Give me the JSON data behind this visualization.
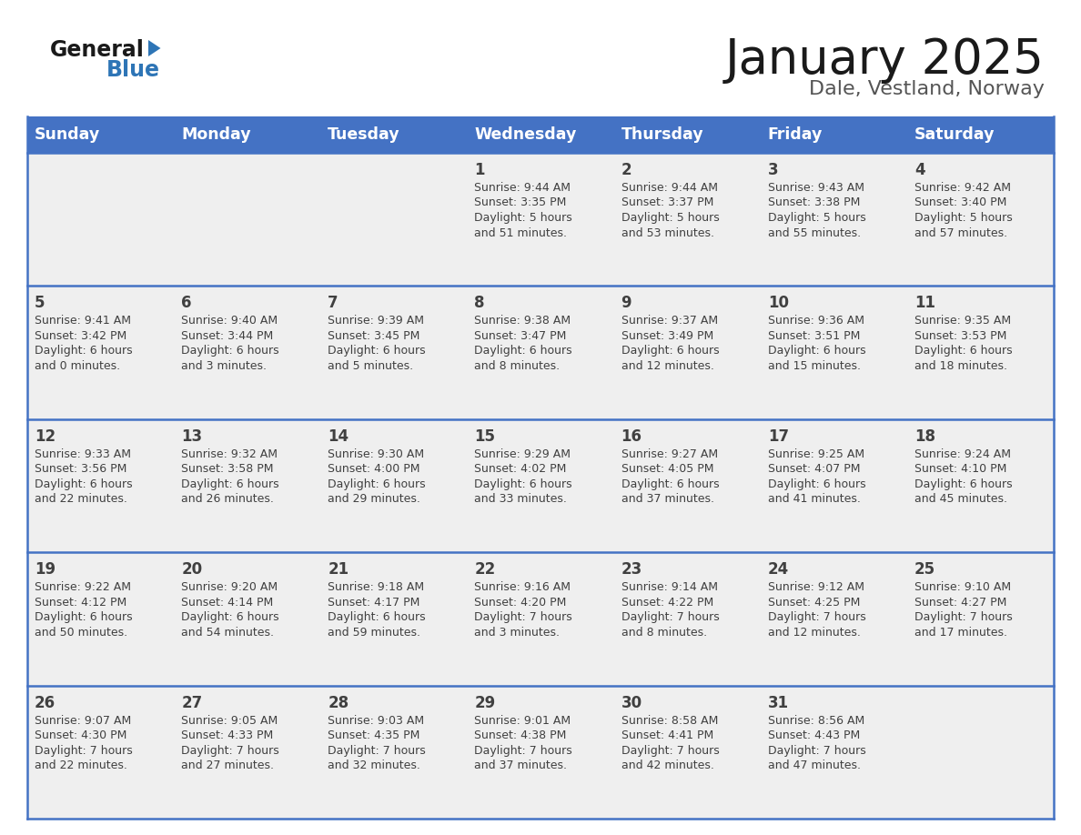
{
  "title": "January 2025",
  "subtitle": "Dale, Vestland, Norway",
  "days_of_week": [
    "Sunday",
    "Monday",
    "Tuesday",
    "Wednesday",
    "Thursday",
    "Friday",
    "Saturday"
  ],
  "header_bg": "#4472C4",
  "header_text_color": "#FFFFFF",
  "cell_bg_light": "#EFEFEF",
  "divider_color": "#4472C4",
  "text_color": "#404040",
  "title_color": "#1a1a1a",
  "subtitle_color": "#555555",
  "logo_general_color": "#1a1a1a",
  "logo_blue_color": "#2E75B6",
  "weeks": [
    {
      "days": [
        {
          "date": "",
          "sunrise": "",
          "sunset": "",
          "daylight": ""
        },
        {
          "date": "",
          "sunrise": "",
          "sunset": "",
          "daylight": ""
        },
        {
          "date": "",
          "sunrise": "",
          "sunset": "",
          "daylight": ""
        },
        {
          "date": "1",
          "sunrise": "9:44 AM",
          "sunset": "3:35 PM",
          "daylight": "5 hours\nand 51 minutes."
        },
        {
          "date": "2",
          "sunrise": "9:44 AM",
          "sunset": "3:37 PM",
          "daylight": "5 hours\nand 53 minutes."
        },
        {
          "date": "3",
          "sunrise": "9:43 AM",
          "sunset": "3:38 PM",
          "daylight": "5 hours\nand 55 minutes."
        },
        {
          "date": "4",
          "sunrise": "9:42 AM",
          "sunset": "3:40 PM",
          "daylight": "5 hours\nand 57 minutes."
        }
      ]
    },
    {
      "days": [
        {
          "date": "5",
          "sunrise": "9:41 AM",
          "sunset": "3:42 PM",
          "daylight": "6 hours\nand 0 minutes."
        },
        {
          "date": "6",
          "sunrise": "9:40 AM",
          "sunset": "3:44 PM",
          "daylight": "6 hours\nand 3 minutes."
        },
        {
          "date": "7",
          "sunrise": "9:39 AM",
          "sunset": "3:45 PM",
          "daylight": "6 hours\nand 5 minutes."
        },
        {
          "date": "8",
          "sunrise": "9:38 AM",
          "sunset": "3:47 PM",
          "daylight": "6 hours\nand 8 minutes."
        },
        {
          "date": "9",
          "sunrise": "9:37 AM",
          "sunset": "3:49 PM",
          "daylight": "6 hours\nand 12 minutes."
        },
        {
          "date": "10",
          "sunrise": "9:36 AM",
          "sunset": "3:51 PM",
          "daylight": "6 hours\nand 15 minutes."
        },
        {
          "date": "11",
          "sunrise": "9:35 AM",
          "sunset": "3:53 PM",
          "daylight": "6 hours\nand 18 minutes."
        }
      ]
    },
    {
      "days": [
        {
          "date": "12",
          "sunrise": "9:33 AM",
          "sunset": "3:56 PM",
          "daylight": "6 hours\nand 22 minutes."
        },
        {
          "date": "13",
          "sunrise": "9:32 AM",
          "sunset": "3:58 PM",
          "daylight": "6 hours\nand 26 minutes."
        },
        {
          "date": "14",
          "sunrise": "9:30 AM",
          "sunset": "4:00 PM",
          "daylight": "6 hours\nand 29 minutes."
        },
        {
          "date": "15",
          "sunrise": "9:29 AM",
          "sunset": "4:02 PM",
          "daylight": "6 hours\nand 33 minutes."
        },
        {
          "date": "16",
          "sunrise": "9:27 AM",
          "sunset": "4:05 PM",
          "daylight": "6 hours\nand 37 minutes."
        },
        {
          "date": "17",
          "sunrise": "9:25 AM",
          "sunset": "4:07 PM",
          "daylight": "6 hours\nand 41 minutes."
        },
        {
          "date": "18",
          "sunrise": "9:24 AM",
          "sunset": "4:10 PM",
          "daylight": "6 hours\nand 45 minutes."
        }
      ]
    },
    {
      "days": [
        {
          "date": "19",
          "sunrise": "9:22 AM",
          "sunset": "4:12 PM",
          "daylight": "6 hours\nand 50 minutes."
        },
        {
          "date": "20",
          "sunrise": "9:20 AM",
          "sunset": "4:14 PM",
          "daylight": "6 hours\nand 54 minutes."
        },
        {
          "date": "21",
          "sunrise": "9:18 AM",
          "sunset": "4:17 PM",
          "daylight": "6 hours\nand 59 minutes."
        },
        {
          "date": "22",
          "sunrise": "9:16 AM",
          "sunset": "4:20 PM",
          "daylight": "7 hours\nand 3 minutes."
        },
        {
          "date": "23",
          "sunrise": "9:14 AM",
          "sunset": "4:22 PM",
          "daylight": "7 hours\nand 8 minutes."
        },
        {
          "date": "24",
          "sunrise": "9:12 AM",
          "sunset": "4:25 PM",
          "daylight": "7 hours\nand 12 minutes."
        },
        {
          "date": "25",
          "sunrise": "9:10 AM",
          "sunset": "4:27 PM",
          "daylight": "7 hours\nand 17 minutes."
        }
      ]
    },
    {
      "days": [
        {
          "date": "26",
          "sunrise": "9:07 AM",
          "sunset": "4:30 PM",
          "daylight": "7 hours\nand 22 minutes."
        },
        {
          "date": "27",
          "sunrise": "9:05 AM",
          "sunset": "4:33 PM",
          "daylight": "7 hours\nand 27 minutes."
        },
        {
          "date": "28",
          "sunrise": "9:03 AM",
          "sunset": "4:35 PM",
          "daylight": "7 hours\nand 32 minutes."
        },
        {
          "date": "29",
          "sunrise": "9:01 AM",
          "sunset": "4:38 PM",
          "daylight": "7 hours\nand 37 minutes."
        },
        {
          "date": "30",
          "sunrise": "8:58 AM",
          "sunset": "4:41 PM",
          "daylight": "7 hours\nand 42 minutes."
        },
        {
          "date": "31",
          "sunrise": "8:56 AM",
          "sunset": "4:43 PM",
          "daylight": "7 hours\nand 47 minutes."
        },
        {
          "date": "",
          "sunrise": "",
          "sunset": "",
          "daylight": ""
        }
      ]
    }
  ]
}
